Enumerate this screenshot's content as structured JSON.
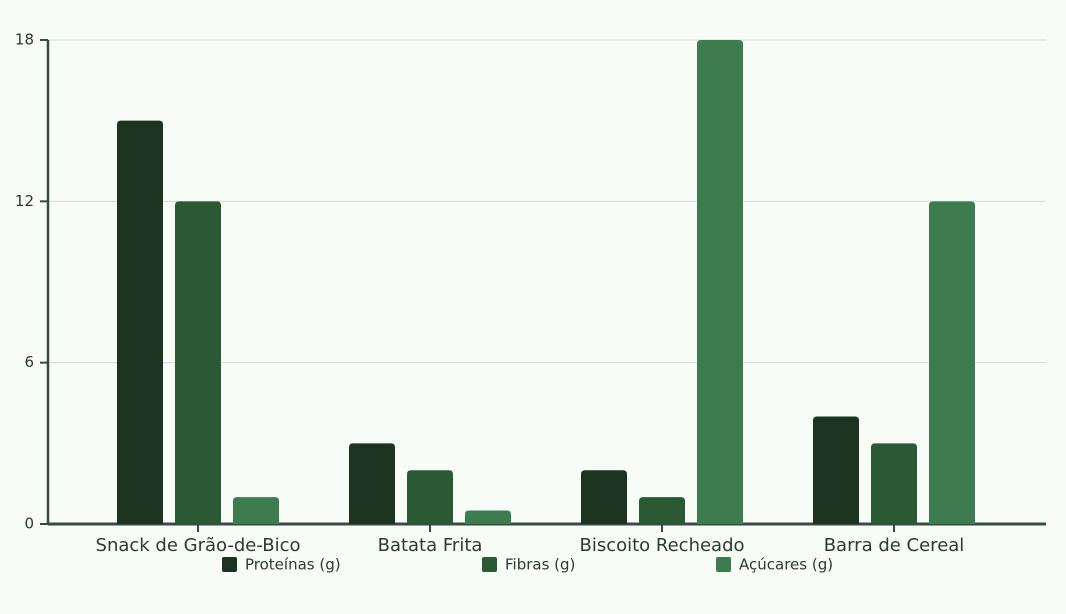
{
  "chart_data": {
    "type": "bar",
    "categories": [
      "Snack de Grão-de-Bico",
      "Batata Frita",
      "Biscoito Recheado",
      "Barra de Cereal"
    ],
    "series": [
      {
        "name": "Proteínas (g)",
        "color": "#1b3320",
        "values": [
          15,
          3,
          2,
          4
        ]
      },
      {
        "name": "Fibras (g)",
        "color": "#2a5934",
        "values": [
          12,
          2,
          1,
          3
        ]
      },
      {
        "name": "Açúcares (g)",
        "color": "#3d7c4e",
        "values": [
          1,
          0.5,
          18,
          12
        ]
      }
    ],
    "ylim": [
      0,
      18
    ],
    "yticks": [
      0,
      6,
      12,
      18
    ],
    "grid": true
  }
}
